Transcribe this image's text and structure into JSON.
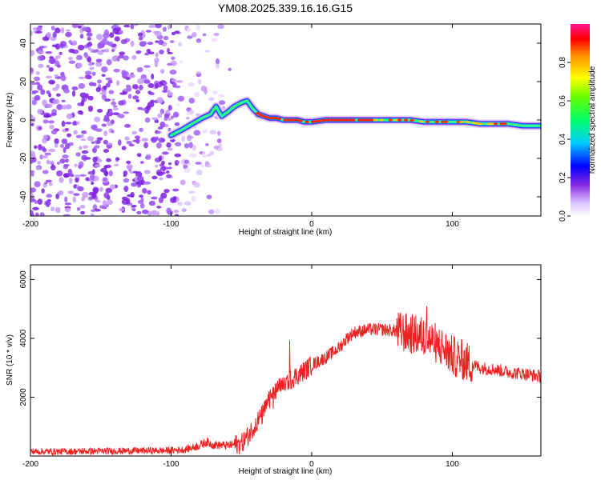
{
  "title": "YM08.2025.339.16.16.G15",
  "colors": {
    "snr_line": "#ee2222",
    "frame": "#000000"
  },
  "chart_data": [
    {
      "type": "heatmap",
      "name": "spectrogram",
      "xlabel": "Height of straight line (km)",
      "ylabel": "Frequency (Hz)",
      "xlim": [
        -200,
        163
      ],
      "ylim": [
        -50,
        50
      ],
      "xticks": [
        -200,
        -100,
        0,
        100
      ],
      "xtick_labels": [
        "-200",
        "-100",
        "0",
        "100"
      ],
      "yticks": [
        -40,
        -20,
        0,
        20,
        40
      ],
      "ytick_labels": [
        "-40",
        "-20",
        "0",
        "20",
        "40"
      ],
      "noise_region_x": [
        -200,
        -58
      ],
      "ridge": {
        "x": [
          -100,
          -92,
          -85,
          -78,
          -72,
          -68,
          -64,
          -60,
          -55,
          -50,
          -46,
          -42,
          -38,
          -34,
          -30,
          -25,
          -20,
          -15,
          -10,
          -5,
          0,
          10,
          20,
          30,
          40,
          50,
          60,
          70,
          80,
          90,
          100,
          110,
          120,
          130,
          140,
          150,
          163
        ],
        "y": [
          -8,
          -5,
          -2,
          1,
          3,
          7,
          2,
          4,
          7,
          9,
          10,
          6,
          3,
          2,
          1,
          1,
          0,
          0,
          0,
          -1,
          -1,
          0,
          0,
          0,
          0,
          0,
          0,
          0,
          -1,
          -1,
          -1,
          -1,
          -2,
          -2,
          -2,
          -3,
          -3
        ]
      },
      "colorbar": {
        "label": "Normalized spectral amplitude",
        "range": [
          0,
          1
        ],
        "ticks": [
          0.0,
          0.2,
          0.4,
          0.6,
          0.8
        ],
        "tick_labels": [
          "0.0",
          "0.2",
          "0.4",
          "0.6",
          "0.8"
        ]
      }
    },
    {
      "type": "line",
      "name": "snr",
      "xlabel": "Height of straight line (km)",
      "ylabel": "SNR (10 * v/v)",
      "xlim": [
        -200,
        163
      ],
      "ylim": [
        0,
        6500
      ],
      "xticks": [
        -200,
        -100,
        0,
        100
      ],
      "xtick_labels": [
        "-200",
        "-100",
        "0",
        "100"
      ],
      "yticks": [
        2000,
        4000,
        6000
      ],
      "ytick_labels": [
        "2000",
        "4000",
        "6000"
      ],
      "series": [
        {
          "name": "SNR",
          "x": [
            -200,
            -180,
            -160,
            -140,
            -120,
            -100,
            -90,
            -80,
            -75,
            -70,
            -60,
            -50,
            -45,
            -40,
            -35,
            -30,
            -25,
            -20,
            -15,
            -10,
            -5,
            0,
            10,
            20,
            25,
            30,
            40,
            50,
            60,
            70,
            80,
            90,
            95,
            100,
            110,
            120,
            130,
            140,
            150,
            163
          ],
          "y": [
            150,
            150,
            160,
            170,
            180,
            190,
            220,
            350,
            480,
            380,
            360,
            420,
            700,
            1100,
            1400,
            1900,
            2200,
            2500,
            2600,
            2750,
            2900,
            3100,
            3350,
            3700,
            4000,
            4200,
            4300,
            4300,
            4250,
            4150,
            4050,
            3800,
            3600,
            3400,
            3200,
            3000,
            2950,
            2850,
            2800,
            2700
          ]
        }
      ]
    }
  ]
}
